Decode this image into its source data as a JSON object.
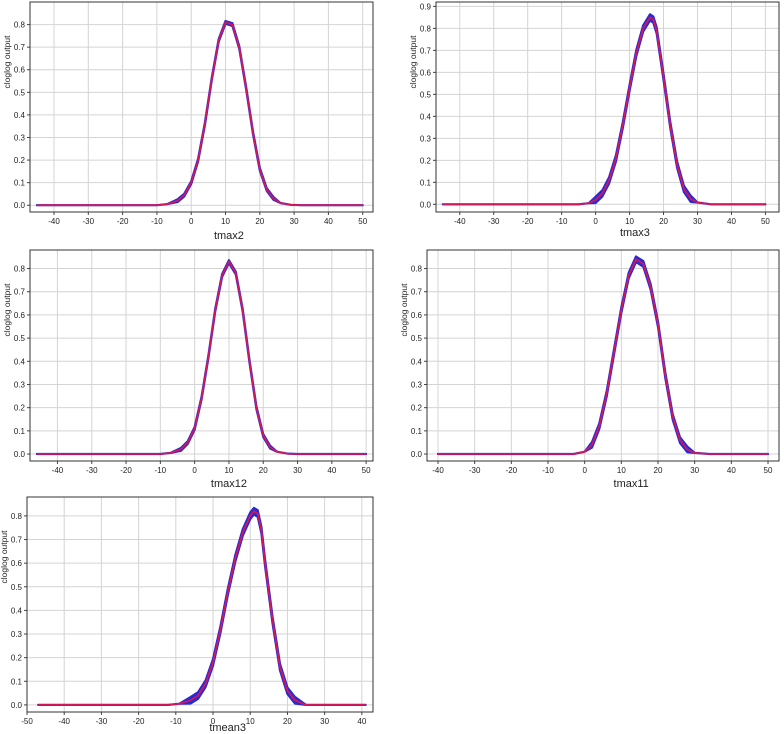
{
  "band_color": "#2a2ad2",
  "mean_color": "#d0185a",
  "chart_data": [
    {
      "type": "line",
      "title": "",
      "xlabel": "tmax2",
      "ylabel": "cloglog output",
      "xlim": [
        -47,
        53
      ],
      "ylim": [
        -0.03,
        0.9
      ],
      "xticks": [
        "-40",
        "-30",
        "-20",
        "-10",
        "0",
        "10",
        "20",
        "30",
        "40",
        "50"
      ],
      "yticks": [
        "0.0",
        "0.1",
        "0.2",
        "0.3",
        "0.4",
        "0.5",
        "0.6",
        "0.7",
        "0.8"
      ],
      "grid": true,
      "legend": "none",
      "x": [
        -45,
        -10,
        -7,
        -4,
        -2,
        0,
        2,
        4,
        6,
        8,
        10,
        12,
        14,
        16,
        18,
        20,
        22,
        24,
        26,
        29,
        32,
        50
      ],
      "series": [
        {
          "values": [
            0,
            0,
            0.005,
            0.02,
            0.045,
            0.1,
            0.2,
            0.36,
            0.56,
            0.73,
            0.81,
            0.8,
            0.7,
            0.52,
            0.32,
            0.16,
            0.07,
            0.03,
            0.01,
            0.002,
            0,
            0
          ],
          "band": 0.006
        }
      ]
    },
    {
      "type": "line",
      "title": "",
      "xlabel": "tmax3",
      "ylabel": "cloglog output",
      "xlim": [
        -47,
        54
      ],
      "ylim": [
        -0.035,
        0.92
      ],
      "xticks": [
        "-40",
        "-30",
        "-20",
        "-10",
        "0",
        "10",
        "20",
        "30",
        "40",
        "50"
      ],
      "yticks": [
        "0.0",
        "0.1",
        "0.2",
        "0.3",
        "0.4",
        "0.5",
        "0.6",
        "0.7",
        "0.8",
        "0.9"
      ],
      "grid": true,
      "legend": "none",
      "x": [
        -45,
        -5,
        -2,
        0,
        2,
        4,
        6,
        8,
        10,
        12,
        14,
        16,
        17,
        18,
        20,
        22,
        24,
        26,
        28,
        30,
        34,
        50
      ],
      "series": [
        {
          "values": [
            0,
            0,
            0.005,
            0.02,
            0.05,
            0.11,
            0.21,
            0.36,
            0.53,
            0.69,
            0.8,
            0.85,
            0.84,
            0.79,
            0.58,
            0.36,
            0.18,
            0.07,
            0.025,
            0.008,
            0,
            0
          ],
          "band": 0.014
        }
      ]
    },
    {
      "type": "line",
      "title": "",
      "xlabel": "tmax12",
      "ylabel": "cloglog output",
      "xlim": [
        -48,
        52
      ],
      "ylim": [
        -0.03,
        0.88
      ],
      "xticks": [
        "-40",
        "-30",
        "-20",
        "-10",
        "0",
        "10",
        "20",
        "30",
        "40",
        "50"
      ],
      "yticks": [
        "0.0",
        "0.1",
        "0.2",
        "0.3",
        "0.4",
        "0.5",
        "0.6",
        "0.7",
        "0.8"
      ],
      "grid": true,
      "legend": "none",
      "x": [
        -46,
        -10,
        -7,
        -4,
        -2,
        0,
        2,
        4,
        6,
        8,
        10,
        12,
        14,
        16,
        18,
        20,
        22,
        24,
        27,
        30,
        50
      ],
      "series": [
        {
          "values": [
            0,
            0,
            0.005,
            0.02,
            0.05,
            0.11,
            0.24,
            0.42,
            0.62,
            0.77,
            0.83,
            0.78,
            0.62,
            0.4,
            0.2,
            0.08,
            0.03,
            0.01,
            0.002,
            0,
            0
          ],
          "band": 0.006
        }
      ]
    },
    {
      "type": "line",
      "title": "",
      "xlabel": "tmax11",
      "ylabel": "cloglog output",
      "xlim": [
        -43,
        53
      ],
      "ylim": [
        -0.03,
        0.88
      ],
      "xticks": [
        "-40",
        "-30",
        "-20",
        "-10",
        "0",
        "10",
        "20",
        "30",
        "40",
        "50"
      ],
      "yticks": [
        "0.0",
        "0.1",
        "0.2",
        "0.3",
        "0.4",
        "0.5",
        "0.6",
        "0.7",
        "0.8"
      ],
      "grid": true,
      "legend": "none",
      "x": [
        -40,
        -3,
        0,
        2,
        4,
        6,
        8,
        10,
        12,
        14,
        16,
        18,
        20,
        22,
        24,
        26,
        28,
        30,
        34,
        50
      ],
      "series": [
        {
          "values": [
            0,
            0,
            0.01,
            0.04,
            0.12,
            0.26,
            0.44,
            0.62,
            0.77,
            0.84,
            0.82,
            0.72,
            0.56,
            0.34,
            0.16,
            0.06,
            0.02,
            0.005,
            0,
            0
          ],
          "band": 0.012
        }
      ]
    },
    {
      "type": "line",
      "title": "",
      "xlabel": "tmean3",
      "ylabel": "cloglog output",
      "xlim": [
        -50,
        43
      ],
      "ylim": [
        -0.03,
        0.88
      ],
      "xticks": [
        "-50",
        "-40",
        "-30",
        "-20",
        "-10",
        "0",
        "10",
        "20",
        "30",
        "40"
      ],
      "yticks": [
        "0.0",
        "0.1",
        "0.2",
        "0.3",
        "0.4",
        "0.5",
        "0.6",
        "0.7",
        "0.8"
      ],
      "grid": true,
      "legend": "none",
      "x": [
        -47,
        -12,
        -9,
        -6,
        -4,
        -2,
        0,
        2,
        4,
        6,
        8,
        10,
        11,
        12,
        13,
        14,
        16,
        18,
        20,
        22,
        25,
        41
      ],
      "series": [
        {
          "values": [
            0,
            0,
            0.005,
            0.02,
            0.04,
            0.09,
            0.18,
            0.32,
            0.48,
            0.62,
            0.73,
            0.8,
            0.82,
            0.81,
            0.74,
            0.6,
            0.36,
            0.16,
            0.06,
            0.02,
            0,
            0
          ],
          "band": 0.014
        }
      ]
    }
  ]
}
